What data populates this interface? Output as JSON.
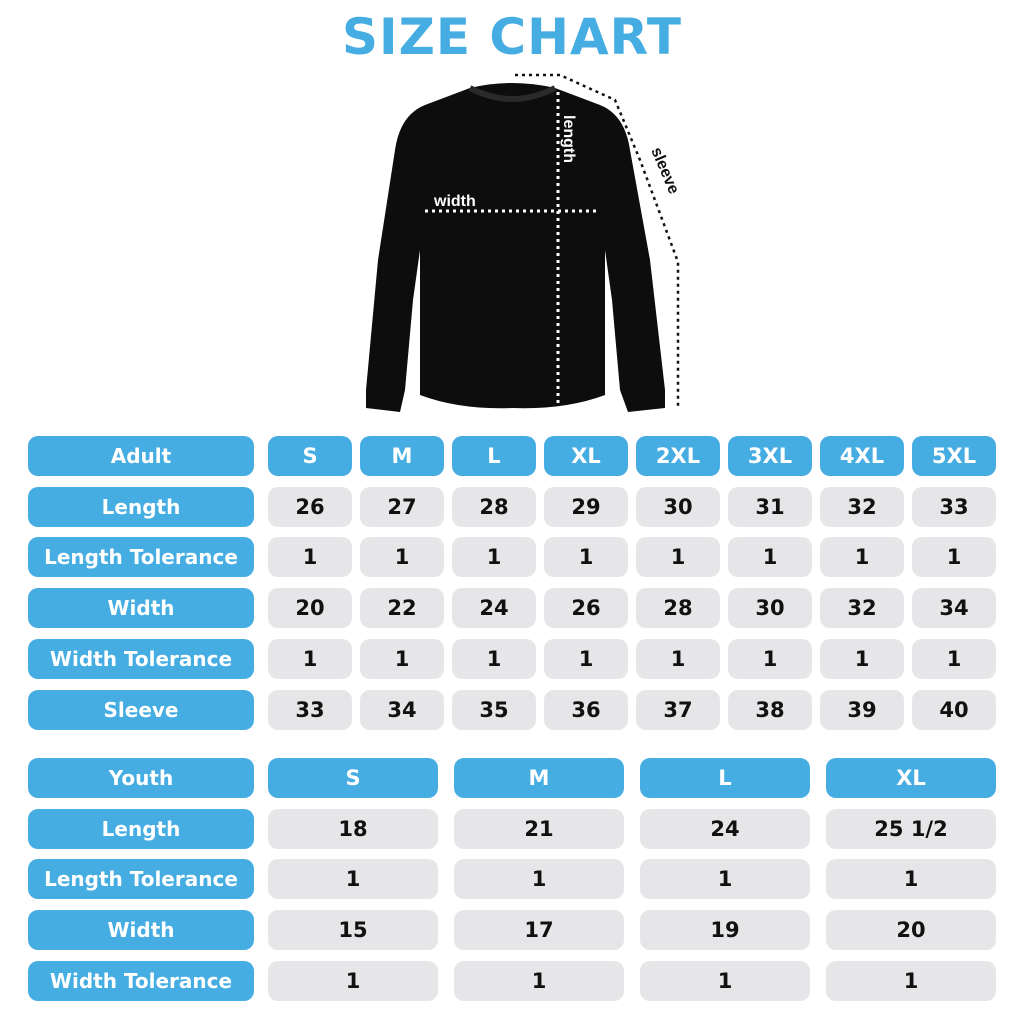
{
  "title": "SIZE CHART",
  "diagram": {
    "length_label": "length",
    "width_label": "width",
    "sleeve_label": "sleeve"
  },
  "colors": {
    "accent": "#45ade2",
    "cell": "#e6e6e8"
  },
  "adult": {
    "header": "Adult",
    "sizes": [
      "S",
      "M",
      "L",
      "XL",
      "2XL",
      "3XL",
      "4XL",
      "5XL"
    ],
    "rows": [
      {
        "label": "Length",
        "values": [
          "26",
          "27",
          "28",
          "29",
          "30",
          "31",
          "32",
          "33"
        ]
      },
      {
        "label": "Length Tolerance",
        "values": [
          "1",
          "1",
          "1",
          "1",
          "1",
          "1",
          "1",
          "1"
        ]
      },
      {
        "label": "Width",
        "values": [
          "20",
          "22",
          "24",
          "26",
          "28",
          "30",
          "32",
          "34"
        ]
      },
      {
        "label": "Width Tolerance",
        "values": [
          "1",
          "1",
          "1",
          "1",
          "1",
          "1",
          "1",
          "1"
        ]
      },
      {
        "label": "Sleeve",
        "values": [
          "33",
          "34",
          "35",
          "36",
          "37",
          "38",
          "39",
          "40"
        ]
      }
    ]
  },
  "youth": {
    "header": "Youth",
    "sizes": [
      "S",
      "M",
      "L",
      "XL"
    ],
    "rows": [
      {
        "label": "Length",
        "values": [
          "18",
          "21",
          "24",
          "25 1/2"
        ]
      },
      {
        "label": "Length Tolerance",
        "values": [
          "1",
          "1",
          "1",
          "1"
        ]
      },
      {
        "label": "Width",
        "values": [
          "15",
          "17",
          "19",
          "20"
        ]
      },
      {
        "label": "Width Tolerance",
        "values": [
          "1",
          "1",
          "1",
          "1"
        ]
      }
    ]
  }
}
